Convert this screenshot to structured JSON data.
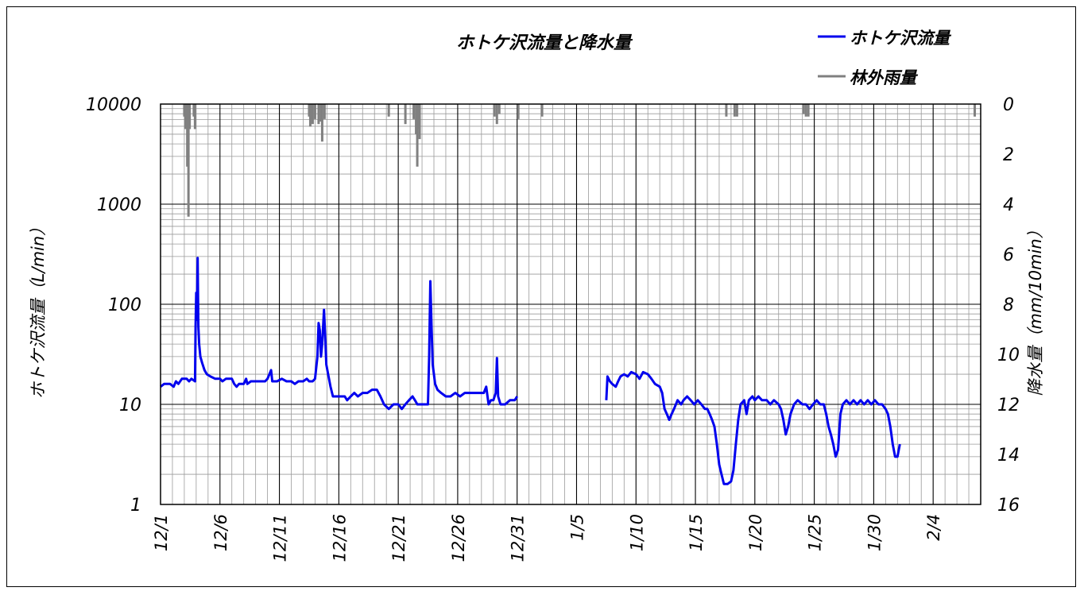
{
  "chart_data": {
    "type": "line",
    "title": "ホトケ沢流量と降水量",
    "ylabel": "ホトケ沢流量（L/min）",
    "y2label": "降水量（mm/10min）",
    "y_scale": "log",
    "ylim": [
      1,
      10000
    ],
    "y_ticks": [
      "10000",
      "1000",
      "100",
      "10",
      "1"
    ],
    "y2lim": [
      0,
      16
    ],
    "y2_inverted": true,
    "y2_ticks": [
      "0",
      "2",
      "4",
      "6",
      "8",
      "10",
      "12",
      "14",
      "16"
    ],
    "x_unit": "days from 12/1",
    "xlim": [
      0,
      69
    ],
    "x_ticks": [
      "12/1",
      "12/6",
      "12/11",
      "12/16",
      "12/21",
      "12/26",
      "12/31",
      "1/5",
      "1/10",
      "1/15",
      "1/20",
      "1/25",
      "1/30",
      "2/4"
    ],
    "grid": true,
    "legend_position": "top-right",
    "colors": {
      "flow": "#0000ee",
      "rain": "#808080"
    },
    "series": [
      {
        "name": "ホトケ沢流量",
        "axis": "left",
        "segments": [
          [
            [
              0,
              15
            ],
            [
              0.3,
              16
            ],
            [
              0.8,
              16
            ],
            [
              1.1,
              15
            ],
            [
              1.3,
              17
            ],
            [
              1.5,
              16
            ],
            [
              1.8,
              18
            ],
            [
              2.2,
              18
            ],
            [
              2.4,
              17
            ],
            [
              2.6,
              18
            ],
            [
              2.9,
              17
            ],
            [
              2.95,
              60
            ],
            [
              3.0,
              130
            ],
            [
              3.05,
              70
            ],
            [
              3.12,
              290
            ],
            [
              3.18,
              60
            ],
            [
              3.25,
              40
            ],
            [
              3.35,
              30
            ],
            [
              3.5,
              26
            ],
            [
              3.7,
              22
            ],
            [
              3.9,
              20
            ],
            [
              4.2,
              19
            ],
            [
              4.6,
              18
            ],
            [
              5,
              18
            ],
            [
              5.2,
              17
            ],
            [
              5.5,
              18
            ],
            [
              5.8,
              18
            ],
            [
              6,
              18
            ],
            [
              6.2,
              16
            ],
            [
              6.4,
              15
            ],
            [
              6.6,
              16
            ],
            [
              7,
              16
            ],
            [
              7.2,
              18
            ],
            [
              7.3,
              16
            ],
            [
              7.6,
              17
            ],
            [
              8,
              17
            ],
            [
              8.4,
              17
            ],
            [
              8.8,
              17
            ],
            [
              9,
              18
            ],
            [
              9.3,
              22
            ],
            [
              9.4,
              17
            ],
            [
              9.8,
              17
            ],
            [
              10.2,
              18
            ],
            [
              10.6,
              17
            ],
            [
              11,
              17
            ],
            [
              11.3,
              16
            ],
            [
              11.6,
              17
            ],
            [
              12,
              17
            ],
            [
              12.3,
              18
            ],
            [
              12.5,
              17
            ],
            [
              12.8,
              17
            ],
            [
              13,
              18
            ],
            [
              13.2,
              30
            ],
            [
              13.3,
              65
            ],
            [
              13.4,
              55
            ],
            [
              13.5,
              30
            ],
            [
              13.6,
              40
            ],
            [
              13.75,
              88
            ],
            [
              13.85,
              50
            ],
            [
              13.95,
              25
            ],
            [
              14.1,
              20
            ],
            [
              14.3,
              15
            ],
            [
              14.5,
              12
            ],
            [
              14.8,
              12
            ],
            [
              15.2,
              12
            ],
            [
              15.5,
              12
            ],
            [
              15.7,
              11
            ],
            [
              16,
              12
            ],
            [
              16.3,
              13
            ],
            [
              16.6,
              12
            ],
            [
              17,
              13
            ],
            [
              17.4,
              13
            ],
            [
              17.8,
              14
            ],
            [
              18.2,
              14
            ],
            [
              18.5,
              12
            ],
            [
              18.8,
              10
            ],
            [
              19.2,
              9
            ],
            [
              19.6,
              10
            ],
            [
              20,
              10
            ],
            [
              20.3,
              9
            ],
            [
              20.6,
              10
            ],
            [
              20.9,
              11
            ],
            [
              21.2,
              12
            ],
            [
              21.4,
              11
            ],
            [
              21.6,
              10
            ],
            [
              21.9,
              10
            ],
            [
              22.2,
              10
            ],
            [
              22.5,
              10
            ],
            [
              22.6,
              30
            ],
            [
              22.7,
              170
            ],
            [
              22.8,
              60
            ],
            [
              22.9,
              25
            ],
            [
              23.1,
              16
            ],
            [
              23.3,
              14
            ],
            [
              23.6,
              13
            ],
            [
              24,
              12
            ],
            [
              24.4,
              12
            ],
            [
              24.8,
              13
            ],
            [
              25.2,
              12
            ],
            [
              25.6,
              13
            ],
            [
              26,
              13
            ],
            [
              26.4,
              13
            ],
            [
              26.8,
              13
            ],
            [
              27.2,
              13
            ],
            [
              27.4,
              15
            ],
            [
              27.6,
              10
            ],
            [
              27.8,
              11
            ],
            [
              28,
              11
            ],
            [
              28.2,
              13
            ],
            [
              28.3,
              29
            ],
            [
              28.4,
              12
            ],
            [
              28.6,
              10
            ],
            [
              29,
              10
            ],
            [
              29.4,
              11
            ],
            [
              29.8,
              11
            ],
            [
              30,
              12
            ]
          ],
          [
            [
              37.5,
              11
            ],
            [
              37.6,
              19
            ],
            [
              37.8,
              17
            ],
            [
              38,
              16
            ],
            [
              38.3,
              15
            ],
            [
              38.5,
              17
            ],
            [
              38.7,
              19
            ],
            [
              39,
              20
            ],
            [
              39.3,
              19
            ],
            [
              39.6,
              21
            ],
            [
              40,
              20
            ],
            [
              40.3,
              18
            ],
            [
              40.6,
              21
            ],
            [
              41,
              20
            ],
            [
              41.3,
              18
            ],
            [
              41.6,
              16
            ],
            [
              42,
              15
            ],
            [
              42.2,
              13
            ],
            [
              42.4,
              9
            ],
            [
              42.6,
              8
            ],
            [
              42.8,
              7
            ],
            [
              43,
              8
            ],
            [
              43.2,
              9
            ],
            [
              43.5,
              11
            ],
            [
              43.8,
              10
            ],
            [
              44,
              11
            ],
            [
              44.3,
              12
            ],
            [
              44.6,
              11
            ],
            [
              44.9,
              10
            ],
            [
              45.2,
              11
            ],
            [
              45.5,
              10
            ],
            [
              45.8,
              9
            ],
            [
              46,
              9
            ],
            [
              46.2,
              8
            ],
            [
              46.4,
              7
            ],
            [
              46.6,
              6
            ],
            [
              46.8,
              4
            ],
            [
              47.0,
              2.5
            ],
            [
              47.2,
              2
            ],
            [
              47.4,
              1.6
            ],
            [
              47.7,
              1.6
            ],
            [
              48,
              1.7
            ],
            [
              48.2,
              2.2
            ],
            [
              48.4,
              4
            ],
            [
              48.6,
              7
            ],
            [
              48.8,
              10
            ],
            [
              49.1,
              11
            ],
            [
              49.3,
              8
            ],
            [
              49.5,
              11
            ],
            [
              49.8,
              12
            ],
            [
              50,
              11
            ],
            [
              50.3,
              12
            ],
            [
              50.6,
              11
            ],
            [
              51,
              11
            ],
            [
              51.3,
              10
            ],
            [
              51.6,
              11
            ],
            [
              52,
              10
            ],
            [
              52.2,
              9
            ],
            [
              52.4,
              7
            ],
            [
              52.6,
              5
            ],
            [
              52.8,
              6
            ],
            [
              53,
              8
            ],
            [
              53.3,
              10
            ],
            [
              53.6,
              11
            ],
            [
              54,
              10
            ],
            [
              54.3,
              10
            ],
            [
              54.6,
              9
            ],
            [
              54.9,
              10
            ],
            [
              55.2,
              11
            ],
            [
              55.5,
              10
            ],
            [
              55.8,
              10
            ],
            [
              56,
              8
            ],
            [
              56.2,
              6
            ],
            [
              56.4,
              5
            ],
            [
              56.6,
              4
            ],
            [
              56.8,
              3
            ],
            [
              57,
              3.5
            ],
            [
              57.2,
              8
            ],
            [
              57.4,
              10
            ],
            [
              57.7,
              11
            ],
            [
              58,
              10
            ],
            [
              58.3,
              11
            ],
            [
              58.6,
              10
            ],
            [
              58.9,
              11
            ],
            [
              59.2,
              10
            ],
            [
              59.5,
              11
            ],
            [
              59.8,
              10
            ],
            [
              60.1,
              11
            ],
            [
              60.4,
              10
            ],
            [
              60.7,
              10
            ],
            [
              61,
              9
            ],
            [
              61.2,
              8
            ],
            [
              61.4,
              6
            ],
            [
              61.6,
              4
            ],
            [
              61.8,
              3
            ],
            [
              62,
              3
            ],
            [
              62.2,
              4
            ]
          ]
        ]
      },
      {
        "name": "林外雨量",
        "axis": "right",
        "bars": [
          [
            2.0,
            0.5
          ],
          [
            2.1,
            1.0
          ],
          [
            2.15,
            0.8
          ],
          [
            2.25,
            2.5
          ],
          [
            2.35,
            4.5
          ],
          [
            2.45,
            1.0
          ],
          [
            2.8,
            0.5
          ],
          [
            2.9,
            1.0
          ],
          [
            12.5,
            0.5
          ],
          [
            12.6,
            0.9
          ],
          [
            12.7,
            0.6
          ],
          [
            12.8,
            0.8
          ],
          [
            13.0,
            0.6
          ],
          [
            13.3,
            0.8
          ],
          [
            13.5,
            0.7
          ],
          [
            13.6,
            1.5
          ],
          [
            13.8,
            0.6
          ],
          [
            19.2,
            0.5
          ],
          [
            20.6,
            0.8
          ],
          [
            21.3,
            0.6
          ],
          [
            21.5,
            1.2
          ],
          [
            21.6,
            2.5
          ],
          [
            21.7,
            1.0
          ],
          [
            21.8,
            1.4
          ],
          [
            28.1,
            0.5
          ],
          [
            28.3,
            0.8
          ],
          [
            28.5,
            0.4
          ],
          [
            30.1,
            0.6
          ],
          [
            32.1,
            0.5
          ],
          [
            47.6,
            0.5
          ],
          [
            48.3,
            0.5
          ],
          [
            48.5,
            0.5
          ],
          [
            54.1,
            0.4
          ],
          [
            54.3,
            0.5
          ],
          [
            54.5,
            0.5
          ],
          [
            68.5,
            0.5
          ]
        ]
      }
    ],
    "legend": [
      {
        "label": "ホトケ沢流量",
        "color": "#0000ee"
      },
      {
        "label": "林外雨量",
        "color": "#808080"
      }
    ]
  }
}
